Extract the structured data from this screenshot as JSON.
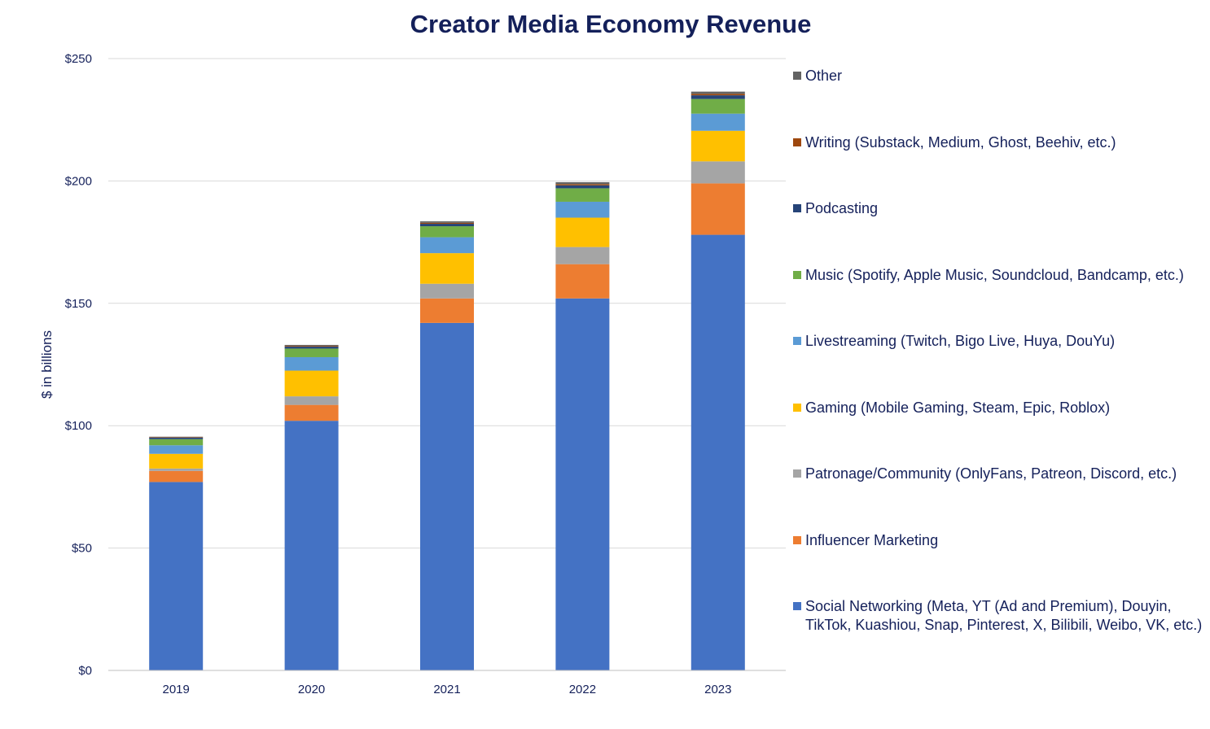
{
  "chart_data": {
    "type": "bar",
    "stacked": true,
    "title": "Creator Media Economy Revenue",
    "xlabel": "",
    "ylabel": "$ in billions",
    "ylim": [
      0,
      250
    ],
    "yticks": [
      "$0",
      "$50",
      "$100",
      "$150",
      "$200",
      "$250"
    ],
    "ytick_values": [
      0,
      50,
      100,
      150,
      200,
      250
    ],
    "grid": "horizontal",
    "legend_position": "right",
    "categories": [
      "2019",
      "2020",
      "2021",
      "2022",
      "2023"
    ],
    "series": [
      {
        "name": "Social Networking (Meta, YT (Ad and Premium), Douyin, TikTok, Kuashiou, Snap, Pinterest, X, Bilibili, Weibo, VK, etc.)",
        "color": "#4472c4",
        "values": [
          77,
          102,
          142,
          152,
          178
        ]
      },
      {
        "name": "Influencer Marketing",
        "color": "#ed7d31",
        "values": [
          4.5,
          6.5,
          10,
          14,
          21
        ]
      },
      {
        "name": "Patronage/Community (OnlyFans, Patreon, Discord, etc.)",
        "color": "#a5a5a5",
        "values": [
          1,
          3.5,
          6,
          7,
          9
        ]
      },
      {
        "name": "Gaming (Mobile Gaming, Steam, Epic, Roblox)",
        "color": "#ffc000",
        "values": [
          6,
          10.5,
          12.5,
          12,
          12.5
        ]
      },
      {
        "name": "Livestreaming (Twitch, Bigo Live, Huya, DouYu)",
        "color": "#5b9bd5",
        "values": [
          3.5,
          5.5,
          6.5,
          6.5,
          7
        ]
      },
      {
        "name": "Music (Spotify, Apple Music, Soundcloud, Bandcamp, etc.)",
        "color": "#70ad47",
        "values": [
          2.5,
          3.5,
          4.5,
          5.5,
          6
        ]
      },
      {
        "name": "Podcasting",
        "color": "#264478",
        "values": [
          0.6,
          0.8,
          1,
          1.2,
          1.5
        ]
      },
      {
        "name": "Writing (Substack, Medium, Ghost, Beehiv, etc.)",
        "color": "#9e480e",
        "values": [
          0.2,
          0.3,
          0.4,
          0.5,
          0.6
        ]
      },
      {
        "name": "Other",
        "color": "#636363",
        "values": [
          0.2,
          0.4,
          0.6,
          0.8,
          0.9
        ]
      }
    ],
    "legend_order": [
      8,
      7,
      6,
      5,
      4,
      3,
      2,
      1,
      0
    ]
  }
}
